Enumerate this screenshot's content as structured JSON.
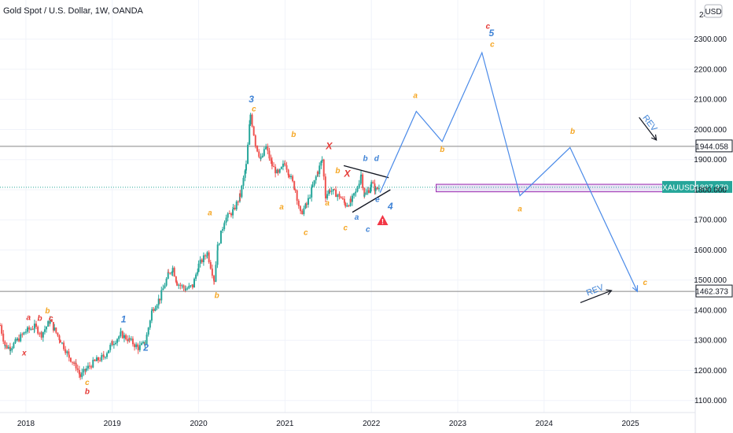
{
  "header": {
    "title": "Gold Spot / U.S. Dollar, 1W, OANDA",
    "currency": "USD"
  },
  "colors": {
    "up": "#26a69a",
    "down": "#ef5350",
    "projection": "#4a8ae8",
    "orange": "#f5a623",
    "red": "#e53935",
    "blue": "#3f83d6",
    "purple": "#9c27b0",
    "hline": "#888888",
    "price_badge": "#26a69a"
  },
  "chart_data": {
    "type": "candlestick",
    "timeframe": "1W",
    "x_axis": {
      "ticks": [
        "2018",
        "2019",
        "2020",
        "2021",
        "2022",
        "2023",
        "2024",
        "2025"
      ],
      "range": [
        2017.7,
        2025.75
      ]
    },
    "y_axis": {
      "ticks": [
        "1100.000",
        "1200.000",
        "1300.000",
        "1400.000",
        "1500.000",
        "1600.000",
        "1700.000",
        "1800.000",
        "1900.000",
        "2000.000",
        "2100.000",
        "2200.000",
        "2300.000"
      ],
      "range": [
        1060,
        2430
      ],
      "top_label_partial": "24"
    },
    "ohlc_waypoints": [
      [
        2017.7,
        1350
      ],
      [
        2017.76,
        1280
      ],
      [
        2017.82,
        1275
      ],
      [
        2017.9,
        1300
      ],
      [
        2018.0,
        1330
      ],
      [
        2018.1,
        1345
      ],
      [
        2018.18,
        1320
      ],
      [
        2018.28,
        1365
      ],
      [
        2018.33,
        1335
      ],
      [
        2018.4,
        1300
      ],
      [
        2018.5,
        1245
      ],
      [
        2018.58,
        1215
      ],
      [
        2018.63,
        1180
      ],
      [
        2018.7,
        1205
      ],
      [
        2018.8,
        1230
      ],
      [
        2018.9,
        1245
      ],
      [
        2019.0,
        1290
      ],
      [
        2019.1,
        1320
      ],
      [
        2019.2,
        1300
      ],
      [
        2019.3,
        1275
      ],
      [
        2019.38,
        1290
      ],
      [
        2019.46,
        1400
      ],
      [
        2019.55,
        1440
      ],
      [
        2019.65,
        1520
      ],
      [
        2019.7,
        1540
      ],
      [
        2019.75,
        1490
      ],
      [
        2019.85,
        1470
      ],
      [
        2019.93,
        1480
      ],
      [
        2020.0,
        1550
      ],
      [
        2020.1,
        1590
      ],
      [
        2020.18,
        1500
      ],
      [
        2020.22,
        1610
      ],
      [
        2020.3,
        1700
      ],
      [
        2020.4,
        1730
      ],
      [
        2020.48,
        1780
      ],
      [
        2020.55,
        1880
      ],
      [
        2020.6,
        2050
      ],
      [
        2020.66,
        1950
      ],
      [
        2020.72,
        1900
      ],
      [
        2020.78,
        1940
      ],
      [
        2020.85,
        1880
      ],
      [
        2020.92,
        1850
      ],
      [
        2021.0,
        1890
      ],
      [
        2021.05,
        1850
      ],
      [
        2021.12,
        1800
      ],
      [
        2021.18,
        1720
      ],
      [
        2021.25,
        1750
      ],
      [
        2021.32,
        1810
      ],
      [
        2021.38,
        1860
      ],
      [
        2021.43,
        1900
      ],
      [
        2021.47,
        1780
      ],
      [
        2021.52,
        1800
      ],
      [
        2021.57,
        1790
      ],
      [
        2021.63,
        1780
      ],
      [
        2021.7,
        1750
      ],
      [
        2021.76,
        1760
      ],
      [
        2021.82,
        1790
      ],
      [
        2021.88,
        1850
      ],
      [
        2021.92,
        1780
      ],
      [
        2021.97,
        1800
      ],
      [
        2022.0,
        1820
      ],
      [
        2022.05,
        1800
      ],
      [
        2022.1,
        1808
      ]
    ],
    "projection_path": [
      [
        2022.1,
        1790
      ],
      [
        2022.52,
        2060
      ],
      [
        2022.82,
        1960
      ],
      [
        2023.28,
        2255
      ],
      [
        2023.72,
        1780
      ],
      [
        2024.3,
        1940
      ],
      [
        2025.08,
        1462
      ]
    ],
    "horizontal_levels": [
      {
        "label": "1944.058",
        "value": 1944.058
      },
      {
        "label": "1462.373",
        "value": 1462.373
      }
    ],
    "current_price": {
      "symbol": "XAUUSD",
      "label": "1807.970",
      "value": 1807.97
    },
    "zone": {
      "from_x": 2022.75,
      "to_x": 2025.7,
      "low": 1793,
      "high": 1818
    },
    "triangle": {
      "upper": [
        [
          2021.68,
          1880
        ],
        [
          2022.2,
          1840
        ]
      ],
      "lower": [
        [
          2021.78,
          1725
        ],
        [
          2022.22,
          1800
        ]
      ]
    },
    "rev_arrows": [
      {
        "label": "REV",
        "direction": "down",
        "from": [
          2025.1,
          2040
        ],
        "to": [
          2025.3,
          1965
        ]
      },
      {
        "label": "REV",
        "direction": "up",
        "from": [
          2024.42,
          1425
        ],
        "to": [
          2024.78,
          1465
        ]
      }
    ],
    "wave_labels": [
      {
        "text": "b",
        "x": 2018.25,
        "y": 1390,
        "color": "orange"
      },
      {
        "text": "a",
        "x": 2018.03,
        "y": 1367,
        "color": "red"
      },
      {
        "text": "b",
        "x": 2018.16,
        "y": 1365,
        "color": "red"
      },
      {
        "text": "c",
        "x": 2018.29,
        "y": 1365,
        "color": "red"
      },
      {
        "text": "x",
        "x": 2017.98,
        "y": 1250,
        "color": "red"
      },
      {
        "text": "c",
        "x": 2018.71,
        "y": 1152,
        "color": "orange"
      },
      {
        "text": "b",
        "x": 2018.71,
        "y": 1122,
        "color": "red"
      },
      {
        "text": "1",
        "x": 2019.13,
        "y": 1360,
        "color": "blue"
      },
      {
        "text": "2",
        "x": 2019.39,
        "y": 1265,
        "color": "blue"
      },
      {
        "text": "a",
        "x": 2020.13,
        "y": 1715,
        "color": "orange"
      },
      {
        "text": "b",
        "x": 2020.21,
        "y": 1440,
        "color": "orange"
      },
      {
        "text": "3",
        "x": 2020.61,
        "y": 2090,
        "color": "blue"
      },
      {
        "text": "c",
        "x": 2020.64,
        "y": 2060,
        "color": "orange"
      },
      {
        "text": "b",
        "x": 2021.1,
        "y": 1975,
        "color": "orange"
      },
      {
        "text": "a",
        "x": 2020.96,
        "y": 1735,
        "color": "orange"
      },
      {
        "text": "c",
        "x": 2021.24,
        "y": 1650,
        "color": "orange"
      },
      {
        "text": "X",
        "x": 2021.51,
        "y": 1935,
        "color": "red"
      },
      {
        "text": "b",
        "x": 2021.61,
        "y": 1855,
        "color": "orange"
      },
      {
        "text": "a",
        "x": 2021.49,
        "y": 1748,
        "color": "orange"
      },
      {
        "text": "X",
        "x": 2021.72,
        "y": 1843,
        "color": "red"
      },
      {
        "text": "c",
        "x": 2021.7,
        "y": 1665,
        "color": "orange"
      },
      {
        "text": "b",
        "x": 2021.93,
        "y": 1895,
        "color": "blue"
      },
      {
        "text": "d",
        "x": 2022.06,
        "y": 1895,
        "color": "blue"
      },
      {
        "text": "a",
        "x": 2021.83,
        "y": 1700,
        "color": "blue"
      },
      {
        "text": "c",
        "x": 2021.96,
        "y": 1660,
        "color": "blue"
      },
      {
        "text": "e",
        "x": 2022.07,
        "y": 1760,
        "color": "blue"
      },
      {
        "text": "4",
        "x": 2022.22,
        "y": 1735,
        "color": "blue"
      },
      {
        "text": "a",
        "x": 2022.51,
        "y": 2105,
        "color": "orange"
      },
      {
        "text": "b",
        "x": 2022.82,
        "y": 1925,
        "color": "orange"
      },
      {
        "text": "c",
        "x": 2023.35,
        "y": 2335,
        "color": "red"
      },
      {
        "text": "5",
        "x": 2023.39,
        "y": 2310,
        "color": "blue"
      },
      {
        "text": "c",
        "x": 2023.4,
        "y": 2275,
        "color": "orange"
      },
      {
        "text": "a",
        "x": 2023.72,
        "y": 1728,
        "color": "orange"
      },
      {
        "text": "b",
        "x": 2024.33,
        "y": 1985,
        "color": "orange"
      },
      {
        "text": "c",
        "x": 2025.17,
        "y": 1483,
        "color": "orange"
      }
    ],
    "warning_icon": {
      "x": 2022.13,
      "y": 1698
    }
  }
}
